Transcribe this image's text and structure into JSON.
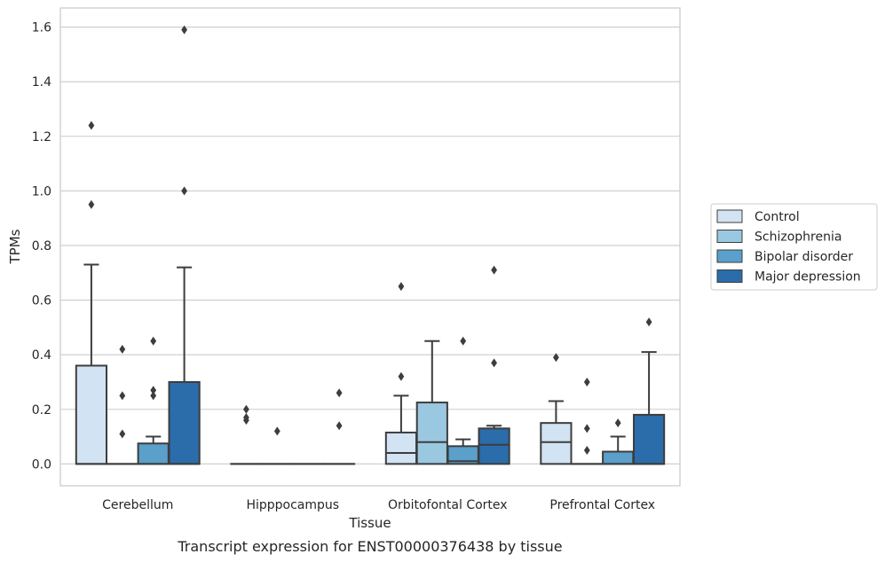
{
  "chart_data": {
    "type": "box",
    "caption": "Transcript expression for ENST00000376438 by tissue",
    "xlabel": "Tissue",
    "ylabel": "TPMs",
    "ylim": [
      -0.08,
      1.67
    ],
    "yticks": [
      0.0,
      0.2,
      0.4,
      0.6,
      0.8,
      1.0,
      1.2,
      1.4,
      1.6
    ],
    "ytick_labels": [
      "0.0",
      "0.2",
      "0.4",
      "0.6",
      "0.8",
      "1.0",
      "1.2",
      "1.4",
      "1.6"
    ],
    "grid": true,
    "legend_position": "right",
    "categories": [
      "Cerebellum",
      "Hipppocampus",
      "Orbitofontal Cortex",
      "Prefrontal Cortex"
    ],
    "series": [
      {
        "name": "Control",
        "color": "#d2e3f3",
        "boxes": [
          {
            "whislo": 0.0,
            "q1": 0.0,
            "med": 0.0,
            "q3": 0.36,
            "whishi": 0.73,
            "fliers": [
              0.95,
              1.24
            ]
          },
          {
            "whislo": 0.0,
            "q1": 0.0,
            "med": 0.0,
            "q3": 0.0,
            "whishi": 0.0,
            "fliers": [
              0.16,
              0.17,
              0.2
            ]
          },
          {
            "whislo": 0.0,
            "q1": 0.0,
            "med": 0.04,
            "q3": 0.115,
            "whishi": 0.25,
            "fliers": [
              0.32,
              0.65
            ]
          },
          {
            "whislo": 0.0,
            "q1": 0.0,
            "med": 0.08,
            "q3": 0.15,
            "whishi": 0.23,
            "fliers": [
              0.39
            ]
          }
        ]
      },
      {
        "name": "Schizophrenia",
        "color": "#9ac8e0",
        "boxes": [
          {
            "whislo": 0.0,
            "q1": 0.0,
            "med": 0.0,
            "q3": 0.0,
            "whishi": 0.0,
            "fliers": [
              0.11,
              0.25,
              0.42
            ]
          },
          {
            "whislo": 0.0,
            "q1": 0.0,
            "med": 0.0,
            "q3": 0.0,
            "whishi": 0.0,
            "fliers": [
              0.12
            ]
          },
          {
            "whislo": 0.0,
            "q1": 0.0,
            "med": 0.08,
            "q3": 0.225,
            "whishi": 0.45,
            "fliers": []
          },
          {
            "whislo": 0.0,
            "q1": 0.0,
            "med": 0.0,
            "q3": 0.0,
            "whishi": 0.0,
            "fliers": [
              0.05,
              0.13,
              0.3
            ]
          }
        ]
      },
      {
        "name": "Bipolar disorder",
        "color": "#5b9fcb",
        "boxes": [
          {
            "whislo": 0.0,
            "q1": 0.0,
            "med": 0.0,
            "q3": 0.075,
            "whishi": 0.1,
            "fliers": [
              0.25,
              0.27,
              0.45
            ]
          },
          {
            "whislo": 0.0,
            "q1": 0.0,
            "med": 0.0,
            "q3": 0.0,
            "whishi": 0.0,
            "fliers": []
          },
          {
            "whislo": 0.0,
            "q1": 0.0,
            "med": 0.01,
            "q3": 0.065,
            "whishi": 0.09,
            "fliers": [
              0.45
            ]
          },
          {
            "whislo": 0.0,
            "q1": 0.0,
            "med": 0.0,
            "q3": 0.045,
            "whishi": 0.1,
            "fliers": [
              0.15
            ]
          }
        ]
      },
      {
        "name": "Major depression",
        "color": "#2b6cab",
        "boxes": [
          {
            "whislo": 0.0,
            "q1": 0.0,
            "med": 0.0,
            "q3": 0.3,
            "whishi": 0.72,
            "fliers": [
              1.0,
              1.59
            ]
          },
          {
            "whislo": 0.0,
            "q1": 0.0,
            "med": 0.0,
            "q3": 0.0,
            "whishi": 0.0,
            "fliers": [
              0.14,
              0.26
            ]
          },
          {
            "whislo": 0.0,
            "q1": 0.0,
            "med": 0.07,
            "q3": 0.13,
            "whishi": 0.14,
            "fliers": [
              0.37,
              0.71
            ]
          },
          {
            "whislo": 0.0,
            "q1": 0.0,
            "med": 0.0,
            "q3": 0.18,
            "whishi": 0.41,
            "fliers": [
              0.52
            ]
          }
        ]
      }
    ]
  }
}
